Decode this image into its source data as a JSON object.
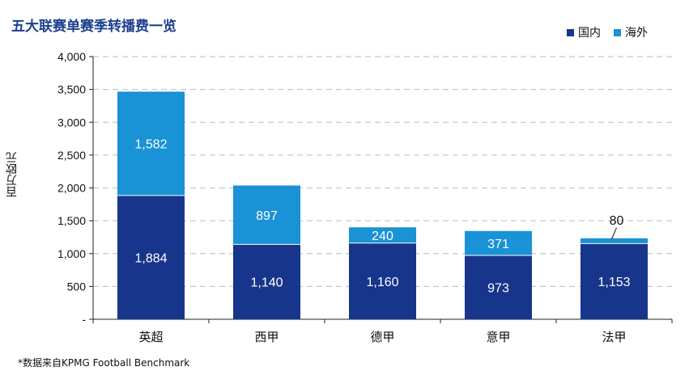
{
  "title": "五大联赛单赛季转播费一览",
  "ylabel": "百万欧元",
  "footnote": "*数据来自KPMG Football Benchmark",
  "legend": [
    {
      "name": "国内",
      "color": "#17368b"
    },
    {
      "name": "海外",
      "color": "#1a92d6"
    }
  ],
  "chart_data": {
    "type": "bar",
    "stacked": true,
    "categories": [
      "英超",
      "西甲",
      "德甲",
      "意甲",
      "法甲"
    ],
    "series": [
      {
        "name": "国内",
        "values": [
          1884,
          1140,
          1160,
          973,
          1153
        ]
      },
      {
        "name": "海外",
        "values": [
          1582,
          897,
          240,
          371,
          80
        ]
      }
    ],
    "value_labels": {
      "国内": [
        "1,884",
        "1,140",
        "1,160",
        "973",
        "1,153"
      ],
      "海外": [
        "1,582",
        "897",
        "240",
        "371",
        "80"
      ]
    },
    "ylim": [
      0,
      4000
    ],
    "yticks": [
      0,
      500,
      1000,
      1500,
      2000,
      2500,
      3000,
      3500,
      4000
    ],
    "ytick_labels": [
      "-",
      "500",
      "1,000",
      "1,500",
      "2,000",
      "2,500",
      "3,000",
      "3,500",
      "4,000"
    ],
    "grid": true,
    "legend_position": "top-right"
  }
}
